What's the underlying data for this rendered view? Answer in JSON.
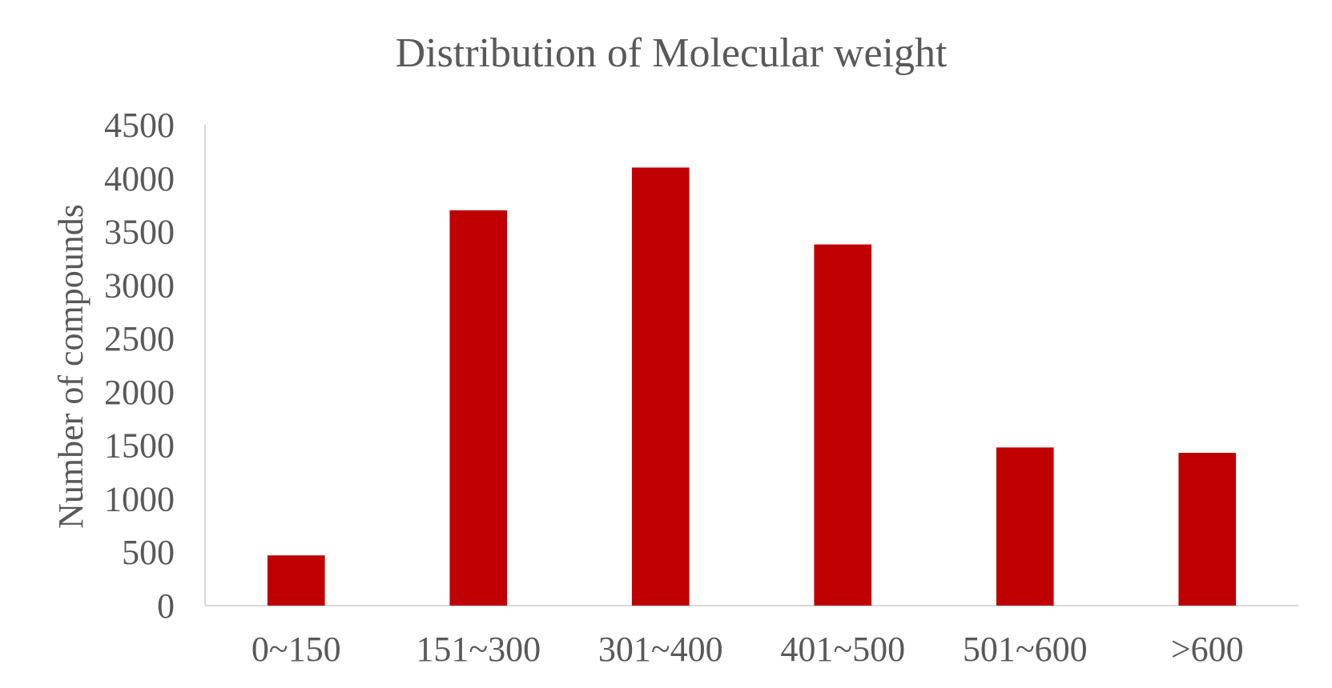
{
  "chart_data": {
    "type": "bar",
    "title": "Distribution of Molecular weight",
    "xlabel": "",
    "ylabel": "Number of compounds",
    "categories": [
      "0~150",
      "151~300",
      "301~400",
      "401~500",
      "501~600",
      ">600"
    ],
    "series": [
      {
        "name": "Number of compounds",
        "values": [
          470,
          3700,
          4100,
          3380,
          1480,
          1430
        ],
        "color": "#C00000"
      }
    ],
    "ylim": [
      0,
      4500
    ],
    "yticks": [
      "0",
      "500",
      "1000",
      "1500",
      "2000",
      "2500",
      "3000",
      "3500",
      "4000",
      "4500"
    ],
    "grid": false,
    "legend": "none"
  }
}
